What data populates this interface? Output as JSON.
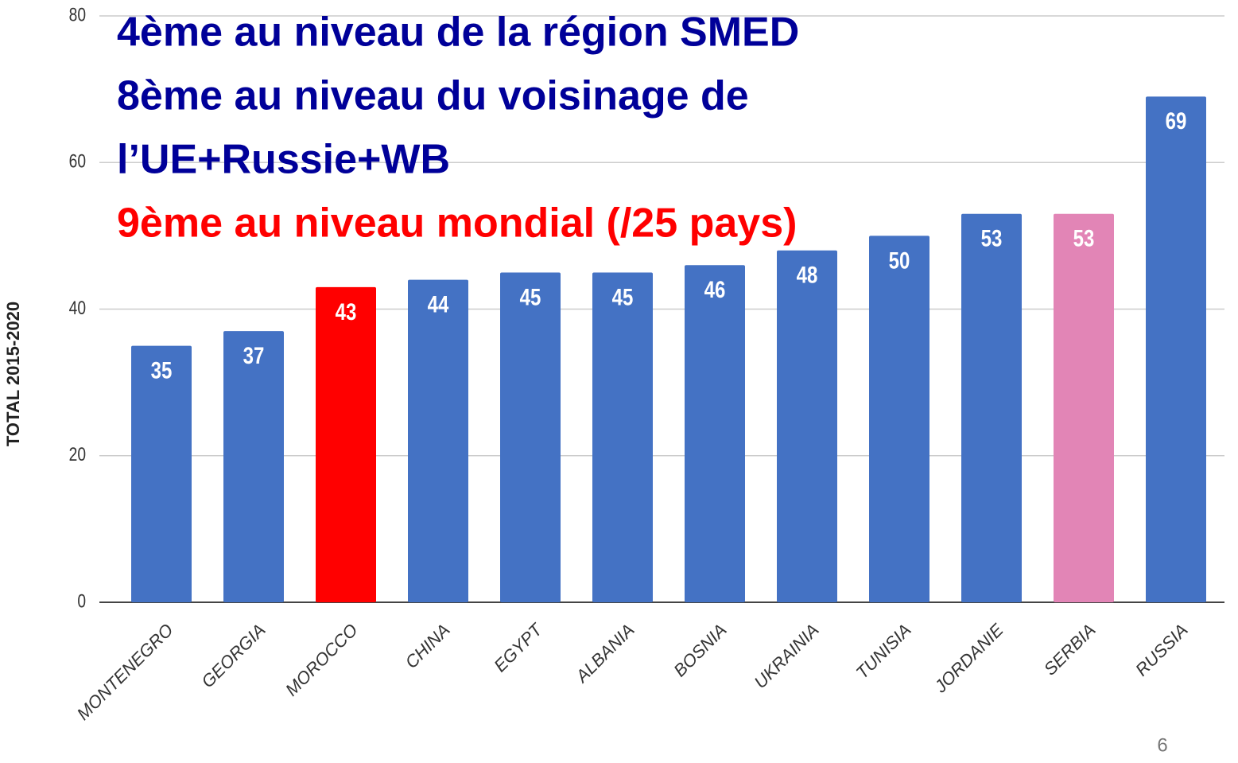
{
  "chart_data": {
    "type": "bar",
    "ylabel": "TOTAL 2015-2020",
    "categories": [
      "MONTENEGRO",
      "GEORGIA",
      "MOROCCO",
      "CHINA",
      "EGYPT",
      "ALBANIA",
      "BOSNIA",
      "UKRAINIA",
      "TUNISIA",
      "JORDANIE",
      "SERBIA",
      "RUSSIA"
    ],
    "values": [
      35,
      37,
      43,
      44,
      45,
      45,
      46,
      48,
      50,
      53,
      53,
      69
    ],
    "colors": [
      "#4472c4",
      "#4472c4",
      "#ff0000",
      "#4472c4",
      "#4472c4",
      "#4472c4",
      "#4472c4",
      "#4472c4",
      "#4472c4",
      "#4472c4",
      "#e285b6",
      "#4472c4"
    ],
    "ylim": [
      0,
      80
    ],
    "yticks": [
      0,
      20,
      40,
      60,
      80
    ],
    "grid": true,
    "annotations": [
      {
        "text": "4ème au niveau de la région SMED",
        "color": "#000099"
      },
      {
        "text": "8ème au niveau du voisinage de",
        "color": "#000099"
      },
      {
        "text": "l’UE+Russie+WB",
        "color": "#000099"
      },
      {
        "text": "9ème au niveau mondial (/25 pays)",
        "color": "#ff0000"
      }
    ],
    "page_number": "6"
  }
}
